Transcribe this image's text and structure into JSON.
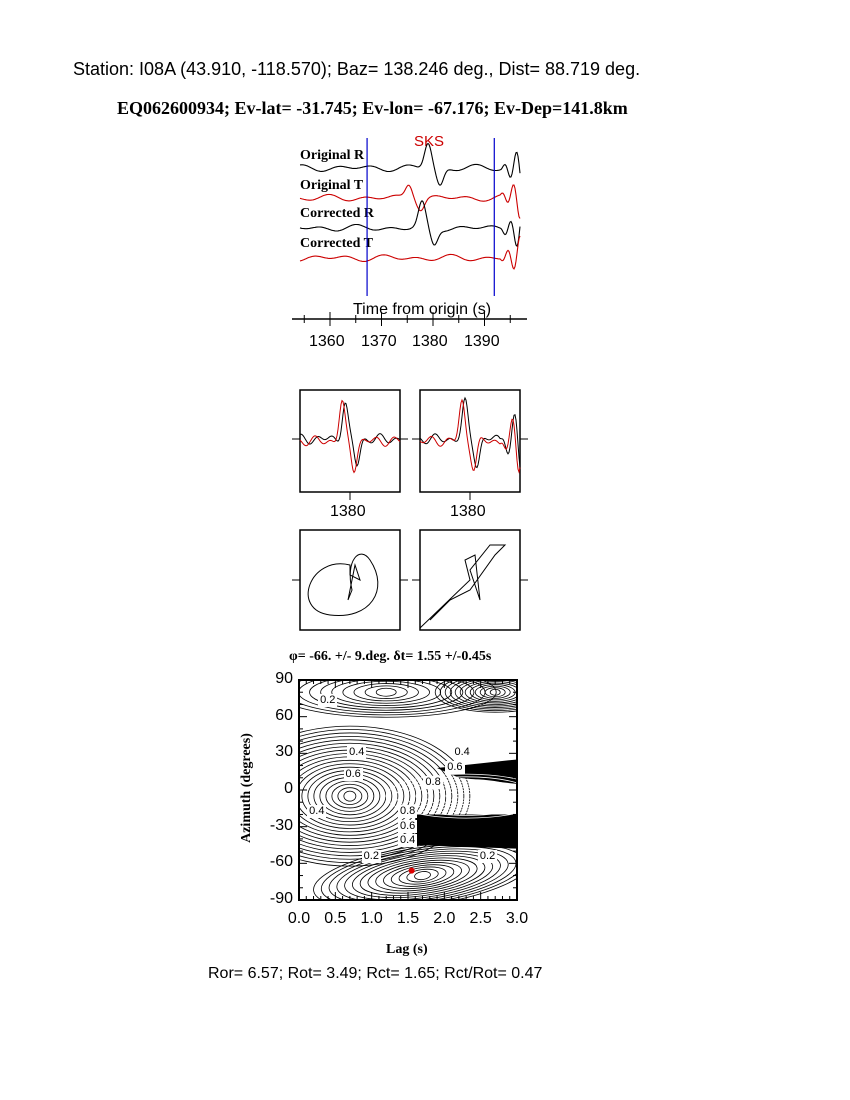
{
  "header": {
    "station_line": "Station: I08A (43.910, -118.570); Baz=  138.246 deg., Dist=   88.719 deg.",
    "event_line": "EQ062600934; Ev-lat= -31.745; Ev-lon= -67.176; Ev-Dep=141.8km"
  },
  "colors": {
    "original_r": "#000000",
    "original_t": "#cc0000",
    "window_lines": "#0000cc",
    "phase_label": "#cc0000",
    "best_fit": "#dd0000"
  },
  "chart_data": [
    {
      "type": "line",
      "title": "",
      "phase_label": "SKS",
      "xlabel": "Time from origin (s)",
      "xticks": [
        "1360",
        "1370",
        "1380",
        "1390"
      ],
      "xlim": [
        1354,
        1397
      ],
      "window": [
        1367.2,
        1391.9
      ],
      "series": [
        {
          "name": "Original R"
        },
        {
          "name": "Original T"
        },
        {
          "name": "Corrected R"
        },
        {
          "name": "Corrected T"
        }
      ]
    },
    {
      "type": "line",
      "panel": "waveform-overlay-original",
      "xticks": [
        "1380"
      ]
    },
    {
      "type": "line",
      "panel": "waveform-overlay-corrected",
      "xticks": [
        "1380"
      ]
    },
    {
      "type": "line",
      "panel": "particle-motion-original"
    },
    {
      "type": "line",
      "panel": "particle-motion-corrected"
    },
    {
      "type": "heatmap",
      "title": "φ= -66. +/- 9.deg. δt= 1.55 +/-0.45s",
      "xlabel": "Lag (s)",
      "ylabel": "Azimuth (degrees)",
      "xlim": [
        0,
        3
      ],
      "ylim": [
        -90,
        90
      ],
      "xticks": [
        "0.0",
        "0.5",
        "1.0",
        "1.5",
        "2.0",
        "2.5",
        "3.0"
      ],
      "yticks": [
        "90",
        "60",
        "30",
        "0",
        "-30",
        "-60",
        "-90"
      ],
      "contour_labels": [
        "0.2",
        "0.4",
        "0.6",
        "0.4",
        "0.6",
        "0.8",
        "0.8",
        "0.6",
        "0.4",
        "0.2",
        "0.2",
        "0.4"
      ],
      "best_fit": {
        "lag": 1.55,
        "azimuth": -66
      }
    }
  ],
  "footer": {
    "ratios": "Ror= 6.57; Rot= 3.49; Rct= 1.65; Rct/Rot= 0.47"
  }
}
